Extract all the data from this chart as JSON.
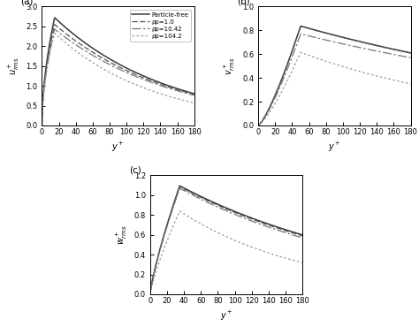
{
  "subplot_labels": [
    "(a)",
    "(b)",
    "(c)"
  ],
  "x_label": "y+",
  "x_range": [
    0,
    180
  ],
  "x_ticks": [
    0,
    20,
    40,
    60,
    80,
    100,
    120,
    140,
    160,
    180
  ],
  "legend_labels": [
    "Particle-free",
    "ρp=1.0",
    "ρp=10.42",
    "ρp=104.2"
  ],
  "panel_a": {
    "ylabel": "u+rms",
    "ylim": [
      0.0,
      3.0
    ],
    "yticks": [
      0.0,
      0.5,
      1.0,
      1.5,
      2.0,
      2.5,
      3.0
    ],
    "curves": [
      {
        "peak_x": 15,
        "peak_y": 2.72,
        "rise_exp": 0.55,
        "decay_exp": 0.38,
        "end_y": 0.8
      },
      {
        "peak_x": 15,
        "peak_y": 2.55,
        "rise_exp": 0.55,
        "decay_exp": 0.38,
        "end_y": 0.78
      },
      {
        "peak_x": 15,
        "peak_y": 2.43,
        "rise_exp": 0.55,
        "decay_exp": 0.4,
        "end_y": 0.76
      },
      {
        "peak_x": 15,
        "peak_y": 2.33,
        "rise_exp": 0.55,
        "decay_exp": 0.55,
        "end_y": 0.57
      }
    ]
  },
  "panel_b": {
    "ylabel": "v+rms",
    "ylim": [
      0.0,
      1.0
    ],
    "yticks": [
      0.0,
      0.2,
      0.4,
      0.6,
      0.8,
      1.0
    ],
    "curves": [
      {
        "peak_x": 50,
        "peak_y": 0.836,
        "rise_exp": 1.3,
        "decay_exp": 0.2,
        "end_y": 0.61
      },
      {
        "peak_x": 50,
        "peak_y": 0.836,
        "rise_exp": 1.3,
        "decay_exp": 0.2,
        "end_y": 0.61
      },
      {
        "peak_x": 50,
        "peak_y": 0.77,
        "rise_exp": 1.3,
        "decay_exp": 0.22,
        "end_y": 0.57
      },
      {
        "peak_x": 50,
        "peak_y": 0.615,
        "rise_exp": 1.3,
        "decay_exp": 0.45,
        "end_y": 0.35
      }
    ]
  },
  "panel_c": {
    "ylabel": "w+rms",
    "ylim": [
      0.0,
      1.2
    ],
    "yticks": [
      0.0,
      0.2,
      0.4,
      0.6,
      0.8,
      1.0,
      1.2
    ],
    "curves": [
      {
        "peak_x": 35,
        "peak_y": 1.095,
        "rise_exp": 0.8,
        "decay_exp": 0.25,
        "end_y": 0.6
      },
      {
        "peak_x": 35,
        "peak_y": 1.085,
        "rise_exp": 0.8,
        "decay_exp": 0.25,
        "end_y": 0.59
      },
      {
        "peak_x": 35,
        "peak_y": 1.07,
        "rise_exp": 0.8,
        "decay_exp": 0.27,
        "end_y": 0.57
      },
      {
        "peak_x": 35,
        "peak_y": 0.84,
        "rise_exp": 0.8,
        "decay_exp": 0.45,
        "end_y": 0.32
      }
    ]
  },
  "line_styles": [
    {
      "ls": "-",
      "lw": 1.1,
      "color": "#3a3a3a",
      "dashes": null
    },
    {
      "ls": "--",
      "lw": 0.9,
      "color": "#555555",
      "dashes": [
        5,
        2
      ]
    },
    {
      "ls": "--",
      "lw": 0.9,
      "color": "#777777",
      "dashes": [
        8,
        2,
        2,
        2
      ]
    },
    {
      "ls": ":",
      "lw": 0.9,
      "color": "#999999",
      "dashes": [
        2,
        2
      ]
    }
  ]
}
